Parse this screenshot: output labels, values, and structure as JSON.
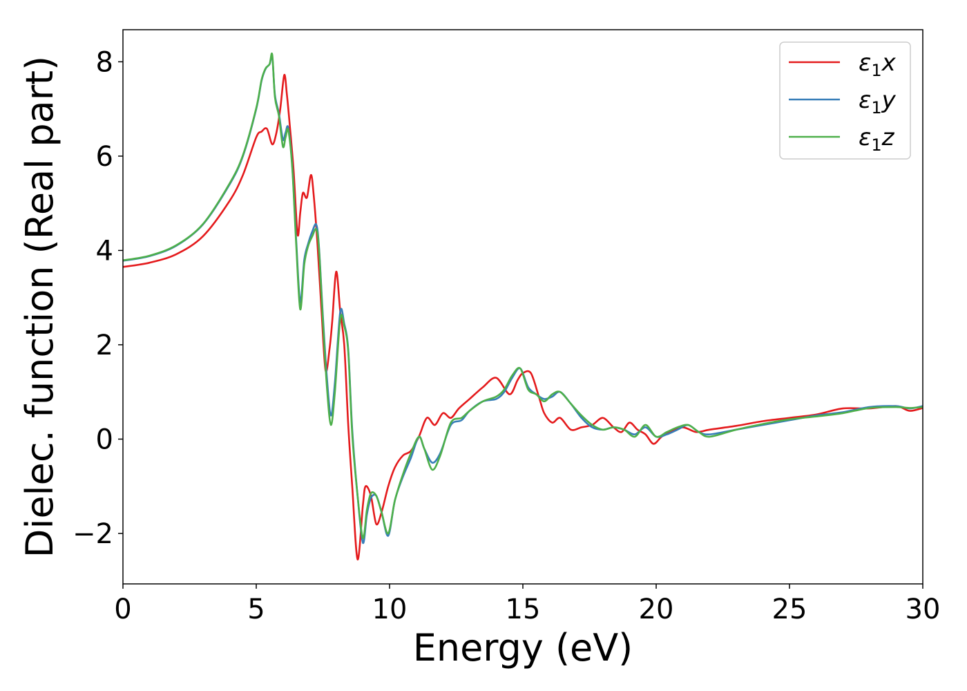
{
  "chart_data": {
    "type": "line",
    "xlabel": "Energy (eV)",
    "ylabel": "Dielec. function (Real part)",
    "xlim": [
      0,
      30
    ],
    "ylim": [
      -3.07,
      8.68
    ],
    "xticks": [
      0,
      5,
      10,
      15,
      20,
      25,
      30
    ],
    "xtick_labels": [
      "0",
      "5",
      "10",
      "15",
      "20",
      "25",
      "30"
    ],
    "yticks": [
      -2,
      0,
      2,
      4,
      6,
      8
    ],
    "ytick_labels": [
      "−2",
      "0",
      "2",
      "4",
      "6",
      "8"
    ],
    "grid": false,
    "legend_position": "top-right",
    "series": [
      {
        "name": "ε1x",
        "legend_base": "ε",
        "legend_sub": "1",
        "legend_tail": "x",
        "color": "#e41a1c",
        "x": [
          0,
          1,
          2,
          3,
          4,
          4.5,
          5,
          5.2,
          5.4,
          5.6,
          5.75,
          5.9,
          6.05,
          6.15,
          6.25,
          6.4,
          6.55,
          6.65,
          6.75,
          6.9,
          7.05,
          7.15,
          7.3,
          7.45,
          7.6,
          7.75,
          7.85,
          8.0,
          8.15,
          8.3,
          8.45,
          8.6,
          8.8,
          9.0,
          9.1,
          9.3,
          9.5,
          9.7,
          9.95,
          10.2,
          10.5,
          10.8,
          11.1,
          11.4,
          11.7,
          12.0,
          12.3,
          12.6,
          13.0,
          13.5,
          14.0,
          14.5,
          14.8,
          15.0,
          15.3,
          15.6,
          15.8,
          16.1,
          16.4,
          16.8,
          17.2,
          17.6,
          18.0,
          18.4,
          18.7,
          19.0,
          19.3,
          19.6,
          19.9,
          20.2,
          20.5,
          21.0,
          21.5,
          22.0,
          23.0,
          24.0,
          25.0,
          26.0,
          27.0,
          28.0,
          29.0,
          29.5,
          30.0
        ],
        "y": [
          3.65,
          3.74,
          3.92,
          4.3,
          5.05,
          5.6,
          6.4,
          6.52,
          6.58,
          6.25,
          6.48,
          7.0,
          7.72,
          7.3,
          6.7,
          5.7,
          4.34,
          4.8,
          5.22,
          5.12,
          5.6,
          5.2,
          4.1,
          2.7,
          1.45,
          1.92,
          2.5,
          3.55,
          2.7,
          2.0,
          0.3,
          -1.0,
          -2.55,
          -1.4,
          -1.0,
          -1.2,
          -1.8,
          -1.55,
          -1.0,
          -0.6,
          -0.35,
          -0.25,
          0.05,
          0.45,
          0.3,
          0.55,
          0.45,
          0.65,
          0.85,
          1.1,
          1.3,
          0.95,
          1.25,
          1.4,
          1.4,
          0.9,
          0.55,
          0.35,
          0.45,
          0.2,
          0.25,
          0.3,
          0.45,
          0.25,
          0.15,
          0.35,
          0.2,
          0.1,
          -0.1,
          0.05,
          0.15,
          0.25,
          0.15,
          0.2,
          0.28,
          0.38,
          0.45,
          0.52,
          0.65,
          0.65,
          0.7,
          0.6,
          0.66
        ]
      },
      {
        "name": "ε1y",
        "legend_base": "ε",
        "legend_sub": "1",
        "legend_tail": "y",
        "color": "#377eb8",
        "x": [
          0,
          1,
          2,
          3,
          4,
          4.5,
          5,
          5.2,
          5.35,
          5.5,
          5.6,
          5.7,
          5.85,
          6.0,
          6.1,
          6.2,
          6.35,
          6.5,
          6.65,
          6.8,
          6.95,
          7.1,
          7.25,
          7.35,
          7.5,
          7.65,
          7.8,
          7.95,
          8.15,
          8.3,
          8.45,
          8.6,
          8.8,
          9.0,
          9.15,
          9.3,
          9.5,
          9.7,
          9.95,
          10.2,
          10.5,
          10.8,
          11.1,
          11.3,
          11.6,
          11.9,
          12.3,
          12.7,
          13.0,
          13.5,
          14.0,
          14.3,
          14.6,
          14.9,
          15.2,
          15.5,
          15.8,
          16.1,
          16.4,
          16.8,
          17.2,
          17.6,
          18.0,
          18.4,
          18.8,
          19.2,
          19.6,
          20.0,
          20.4,
          20.8,
          21.2,
          21.6,
          22.0,
          23.0,
          24.0,
          25.0,
          26.0,
          27.0,
          28.0,
          29.0,
          29.5,
          30.0
        ],
        "y": [
          3.78,
          3.88,
          4.1,
          4.55,
          5.4,
          6.0,
          7.0,
          7.6,
          7.85,
          7.95,
          8.1,
          7.3,
          6.9,
          6.35,
          6.5,
          6.6,
          5.8,
          4.2,
          2.9,
          3.8,
          4.15,
          4.4,
          4.55,
          4.1,
          2.6,
          1.3,
          0.5,
          1.2,
          2.7,
          2.45,
          1.9,
          0.2,
          -1.2,
          -2.2,
          -1.6,
          -1.25,
          -1.2,
          -1.55,
          -2.05,
          -1.3,
          -0.8,
          -0.4,
          0.05,
          -0.2,
          -0.5,
          -0.3,
          0.3,
          0.4,
          0.6,
          0.8,
          0.85,
          1.0,
          1.3,
          1.5,
          1.1,
          0.95,
          0.85,
          0.9,
          1.0,
          0.75,
          0.45,
          0.25,
          0.2,
          0.25,
          0.2,
          0.1,
          0.25,
          0.05,
          0.1,
          0.2,
          0.3,
          0.15,
          0.1,
          0.2,
          0.3,
          0.4,
          0.5,
          0.57,
          0.68,
          0.7,
          0.65,
          0.7
        ]
      },
      {
        "name": "ε1z",
        "legend_base": "ε",
        "legend_sub": "1",
        "legend_tail": "z",
        "color": "#4daf4a",
        "x": [
          0,
          1,
          2,
          3,
          4,
          4.5,
          5,
          5.2,
          5.35,
          5.5,
          5.6,
          5.7,
          5.85,
          6.0,
          6.1,
          6.2,
          6.35,
          6.5,
          6.65,
          6.8,
          6.95,
          7.1,
          7.25,
          7.35,
          7.5,
          7.65,
          7.8,
          7.95,
          8.15,
          8.3,
          8.45,
          8.6,
          8.8,
          9.0,
          9.15,
          9.3,
          9.5,
          9.7,
          9.95,
          10.2,
          10.5,
          10.8,
          11.1,
          11.3,
          11.6,
          11.9,
          12.3,
          12.7,
          13.0,
          13.5,
          14.0,
          14.3,
          14.6,
          14.9,
          15.2,
          15.5,
          15.8,
          16.1,
          16.4,
          16.8,
          17.2,
          17.6,
          18.0,
          18.4,
          18.8,
          19.2,
          19.6,
          20.0,
          20.4,
          20.8,
          21.2,
          21.6,
          22.0,
          23.0,
          24.0,
          25.0,
          26.0,
          27.0,
          28.0,
          29.0,
          29.5,
          30.0
        ],
        "y": [
          3.79,
          3.89,
          4.11,
          4.56,
          5.42,
          6.02,
          7.02,
          7.62,
          7.86,
          7.95,
          8.15,
          7.25,
          6.85,
          6.2,
          6.4,
          6.55,
          5.75,
          4.1,
          2.75,
          3.7,
          4.1,
          4.3,
          4.45,
          4.05,
          2.5,
          1.1,
          0.3,
          1.0,
          2.55,
          2.4,
          1.85,
          0.1,
          -1.2,
          -2.1,
          -1.5,
          -1.15,
          -1.2,
          -1.55,
          -2.0,
          -1.3,
          -0.75,
          -0.3,
          0.05,
          -0.2,
          -0.65,
          -0.35,
          0.35,
          0.45,
          0.6,
          0.8,
          0.9,
          1.05,
          1.35,
          1.5,
          1.05,
          0.95,
          0.8,
          0.95,
          1.0,
          0.75,
          0.5,
          0.3,
          0.2,
          0.25,
          0.2,
          0.05,
          0.3,
          0.05,
          0.15,
          0.25,
          0.3,
          0.15,
          0.05,
          0.2,
          0.32,
          0.42,
          0.48,
          0.55,
          0.66,
          0.68,
          0.66,
          0.68
        ]
      }
    ]
  }
}
